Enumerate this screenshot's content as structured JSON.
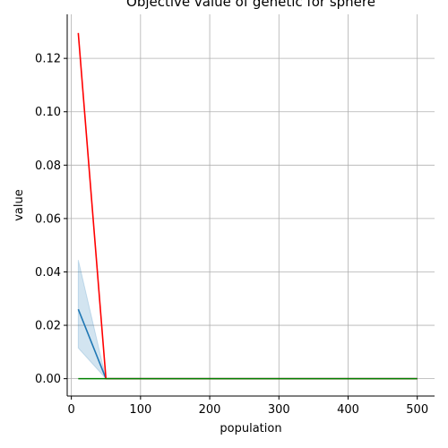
{
  "chart_data": {
    "type": "line",
    "title": "Objective value of genetic for sphere",
    "xlabel": "population",
    "ylabel": "value",
    "xlim": [
      -6,
      525
    ],
    "ylim": [
      -0.0065,
      0.1365
    ],
    "xticks": [
      0,
      100,
      200,
      300,
      400,
      500
    ],
    "xtick_labels": [
      "0",
      "100",
      "200",
      "300",
      "400",
      "500"
    ],
    "yticks": [
      0.0,
      0.02,
      0.04,
      0.06,
      0.08,
      0.1,
      0.12
    ],
    "ytick_labels": [
      "0.00",
      "0.02",
      "0.04",
      "0.06",
      "0.08",
      "0.10",
      "0.12"
    ],
    "grid": true,
    "legend": "none",
    "series": [
      {
        "color": "#1f77b4",
        "x": [
          10,
          50,
          100,
          150,
          200,
          250,
          300,
          350,
          400,
          450,
          500
        ],
        "y": [
          0.026,
          0.0,
          0.0,
          0.0,
          0.0,
          0.0,
          0.0,
          0.0,
          0.0,
          0.0,
          0.0
        ],
        "band_lower": [
          0.0115,
          0.0,
          0.0,
          0.0,
          0.0,
          0.0,
          0.0,
          0.0,
          0.0,
          0.0,
          0.0
        ],
        "band_upper": [
          0.0445,
          0.0,
          0.0,
          0.0,
          0.0,
          0.0,
          0.0,
          0.0,
          0.0,
          0.0,
          0.0
        ],
        "band_color": "#1f77b4"
      },
      {
        "color": "#ff0000",
        "x": [
          10,
          50,
          100,
          150,
          200,
          250,
          300,
          350,
          400,
          450,
          500
        ],
        "y": [
          0.1295,
          0.0,
          0.0,
          0.0,
          0.0,
          0.0,
          0.0,
          0.0,
          0.0,
          0.0,
          0.0
        ]
      },
      {
        "color": "#008000",
        "x": [
          10,
          50,
          100,
          150,
          200,
          250,
          300,
          350,
          400,
          450,
          500
        ],
        "y": [
          0.0,
          0.0,
          0.0,
          0.0,
          0.0,
          0.0,
          0.0,
          0.0,
          0.0,
          0.0,
          0.0
        ]
      }
    ]
  }
}
